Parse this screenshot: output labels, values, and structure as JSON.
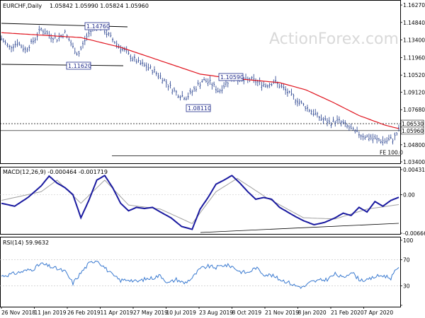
{
  "header": {
    "symbol": "EURCHF,Daily",
    "ohlc": "1.05842 1.05990 1.05824 1.05960"
  },
  "watermark": "ActionForex.com",
  "chart_data": [
    {
      "type": "line",
      "panel": "price",
      "title": "EURCHF,Daily",
      "y_ticks": [
        "1.16270",
        "1.14840",
        "1.13400",
        "1.11960",
        "1.10520",
        "1.09120",
        "1.07680",
        "1.04800",
        "1.03400"
      ],
      "ylim": [
        1.034,
        1.1645
      ],
      "series": [
        {
          "style": "ohlc-bars",
          "approx_close": [
            [
              0,
              1.135
            ],
            [
              6,
              1.128
            ],
            [
              12,
              1.132
            ],
            [
              18,
              1.126
            ],
            [
              24,
              1.133
            ],
            [
              30,
              1.143
            ],
            [
              36,
              1.138
            ],
            [
              42,
              1.135
            ],
            [
              48,
              1.14
            ],
            [
              54,
              1.128
            ],
            [
              58,
              1.122
            ],
            [
              64,
              1.136
            ],
            [
              70,
              1.145
            ],
            [
              74,
              1.146
            ],
            [
              80,
              1.139
            ],
            [
              86,
              1.132
            ],
            [
              92,
              1.126
            ],
            [
              98,
              1.12
            ],
            [
              104,
              1.115
            ],
            [
              110,
              1.112
            ],
            [
              116,
              1.108
            ],
            [
              122,
              1.102
            ],
            [
              128,
              1.095
            ],
            [
              134,
              1.089
            ],
            [
              140,
              1.087
            ],
            [
              146,
              1.094
            ],
            [
              152,
              1.101
            ],
            [
              158,
              1.099
            ],
            [
              164,
              1.092
            ],
            [
              170,
              1.099
            ],
            [
              176,
              1.104
            ],
            [
              182,
              1.1
            ],
            [
              188,
              1.102
            ],
            [
              194,
              1.099
            ],
            [
              200,
              1.097
            ],
            [
              206,
              1.1
            ],
            [
              212,
              1.095
            ],
            [
              218,
              1.089
            ],
            [
              224,
              1.084
            ],
            [
              230,
              1.079
            ],
            [
              236,
              1.074
            ],
            [
              242,
              1.069
            ],
            [
              248,
              1.066
            ],
            [
              254,
              1.068
            ],
            [
              260,
              1.064
            ],
            [
              266,
              1.059
            ],
            [
              272,
              1.056
            ],
            [
              278,
              1.054
            ],
            [
              284,
              1.052
            ],
            [
              290,
              1.051
            ],
            [
              296,
              1.053
            ],
            [
              300,
              1.0596
            ]
          ]
        },
        {
          "style": "moving-average",
          "approx_values": [
            [
              0,
              1.14
            ],
            [
              30,
              1.138
            ],
            [
              60,
              1.136
            ],
            [
              90,
              1.128
            ],
            [
              120,
              1.117
            ],
            [
              150,
              1.106
            ],
            [
              170,
              1.103
            ],
            [
              190,
              1.101
            ],
            [
              210,
              1.099
            ],
            [
              230,
              1.093
            ],
            [
              250,
              1.083
            ],
            [
              270,
              1.072
            ],
            [
              290,
              1.064
            ],
            [
              300,
              1.0612
            ]
          ]
        }
      ],
      "annotations": [
        {
          "text": "1.14760",
          "value": 1.1476
        },
        {
          "text": "1.11620",
          "value": 1.1162
        },
        {
          "text": "1.10590",
          "value": 1.1059
        },
        {
          "text": "1.08110",
          "value": 1.0811
        },
        {
          "text": "1.06530",
          "value": 1.0653
        },
        {
          "text": "1.05960",
          "value": 1.0596
        },
        {
          "text": "FE 100.0",
          "value": 1.039
        }
      ]
    },
    {
      "type": "line",
      "panel": "macd",
      "title": "MACD(12,26,9) -0.000464 -0.001719",
      "y_ticks": [
        "0.004319",
        "0.00",
        "-0.006663"
      ],
      "ylim": [
        -0.006663,
        0.004319
      ],
      "series": [
        {
          "style": "macd",
          "approx_values": [
            [
              0,
              -0.0015
            ],
            [
              10,
              -0.002
            ],
            [
              20,
              -0.0005
            ],
            [
              30,
              0.0015
            ],
            [
              36,
              0.0032
            ],
            [
              42,
              0.002
            ],
            [
              48,
              0.0012
            ],
            [
              54,
              0.0
            ],
            [
              60,
              -0.004
            ],
            [
              66,
              -0.001
            ],
            [
              72,
              0.0025
            ],
            [
              78,
              0.0033
            ],
            [
              84,
              0.0012
            ],
            [
              90,
              -0.0015
            ],
            [
              96,
              -0.0028
            ],
            [
              102,
              -0.0022
            ],
            [
              108,
              -0.0024
            ],
            [
              114,
              -0.0022
            ],
            [
              120,
              -0.003
            ],
            [
              128,
              -0.004
            ],
            [
              136,
              -0.0055
            ],
            [
              144,
              -0.006
            ],
            [
              150,
              -0.0025
            ],
            [
              156,
              -0.0005
            ],
            [
              162,
              0.0018
            ],
            [
              168,
              0.0025
            ],
            [
              174,
              0.0033
            ],
            [
              180,
              0.002
            ],
            [
              186,
              0.0005
            ],
            [
              192,
              -0.0008
            ],
            [
              198,
              -0.0005
            ],
            [
              204,
              -0.0008
            ],
            [
              210,
              -0.0022
            ],
            [
              216,
              -0.003
            ],
            [
              222,
              -0.0038
            ],
            [
              228,
              -0.0045
            ],
            [
              236,
              -0.0052
            ],
            [
              244,
              -0.0048
            ],
            [
              252,
              -0.004
            ],
            [
              258,
              -0.0032
            ],
            [
              264,
              -0.0036
            ],
            [
              270,
              -0.0022
            ],
            [
              276,
              -0.003
            ],
            [
              282,
              -0.0012
            ],
            [
              288,
              -0.002
            ],
            [
              294,
              -0.001
            ],
            [
              300,
              -0.000464
            ]
          ]
        },
        {
          "style": "signal",
          "approx_values": [
            [
              0,
              -0.001
            ],
            [
              30,
              0.0005
            ],
            [
              42,
              0.0025
            ],
            [
              60,
              -0.0015
            ],
            [
              78,
              0.0025
            ],
            [
              96,
              -0.0018
            ],
            [
              120,
              -0.0025
            ],
            [
              144,
              -0.005
            ],
            [
              162,
              0.0005
            ],
            [
              178,
              0.0028
            ],
            [
              200,
              -0.0005
            ],
            [
              228,
              -0.004
            ],
            [
              252,
              -0.0042
            ],
            [
              276,
              -0.0025
            ],
            [
              300,
              -0.001719
            ]
          ]
        }
      ]
    },
    {
      "type": "line",
      "panel": "rsi",
      "title": "RSI(14) 59.9632",
      "y_ticks": [
        "100",
        "70",
        "30",
        "0"
      ],
      "ylim": [
        0,
        100
      ],
      "series": [
        {
          "style": "rsi",
          "approx_values": [
            [
              0,
              45
            ],
            [
              8,
              48
            ],
            [
              16,
              52
            ],
            [
              24,
              56
            ],
            [
              30,
              64
            ],
            [
              36,
              60
            ],
            [
              42,
              56
            ],
            [
              48,
              52
            ],
            [
              54,
              34
            ],
            [
              60,
              50
            ],
            [
              66,
              64
            ],
            [
              72,
              70
            ],
            [
              78,
              58
            ],
            [
              84,
              46
            ],
            [
              90,
              38
            ],
            [
              96,
              40
            ],
            [
              102,
              36
            ],
            [
              108,
              40
            ],
            [
              114,
              42
            ],
            [
              120,
              46
            ],
            [
              126,
              34
            ],
            [
              132,
              40
            ],
            [
              138,
              34
            ],
            [
              144,
              42
            ],
            [
              150,
              56
            ],
            [
              156,
              60
            ],
            [
              162,
              58
            ],
            [
              168,
              62
            ],
            [
              174,
              60
            ],
            [
              180,
              52
            ],
            [
              186,
              50
            ],
            [
              192,
              58
            ],
            [
              198,
              48
            ],
            [
              204,
              46
            ],
            [
              210,
              40
            ],
            [
              216,
              36
            ],
            [
              222,
              30
            ],
            [
              228,
              28
            ],
            [
              234,
              36
            ],
            [
              240,
              38
            ],
            [
              246,
              40
            ],
            [
              252,
              48
            ],
            [
              258,
              42
            ],
            [
              264,
              52
            ],
            [
              270,
              40
            ],
            [
              276,
              38
            ],
            [
              282,
              44
            ],
            [
              288,
              46
            ],
            [
              294,
              42
            ],
            [
              300,
              59.9632
            ]
          ]
        }
      ]
    }
  ],
  "x_axis_labels": [
    "26 Nov 2018",
    "11 Jan 2019",
    "26 Feb 2019",
    "11 Apr 2019",
    "27 May 2019",
    "10 Jul 2019",
    "23 Aug 2019",
    "8 Oct 2019",
    "21 Nov 2019",
    "8 Jan 2020",
    "21 Feb 2020",
    "7 Apr 2020"
  ],
  "colors": {
    "price_bars": "#1f3a8a",
    "ma_line": "#e0141e",
    "macd_line": "#1a1aa0",
    "signal_line": "#999999",
    "rsi_line": "#3a7ad0",
    "text": "#000000"
  }
}
